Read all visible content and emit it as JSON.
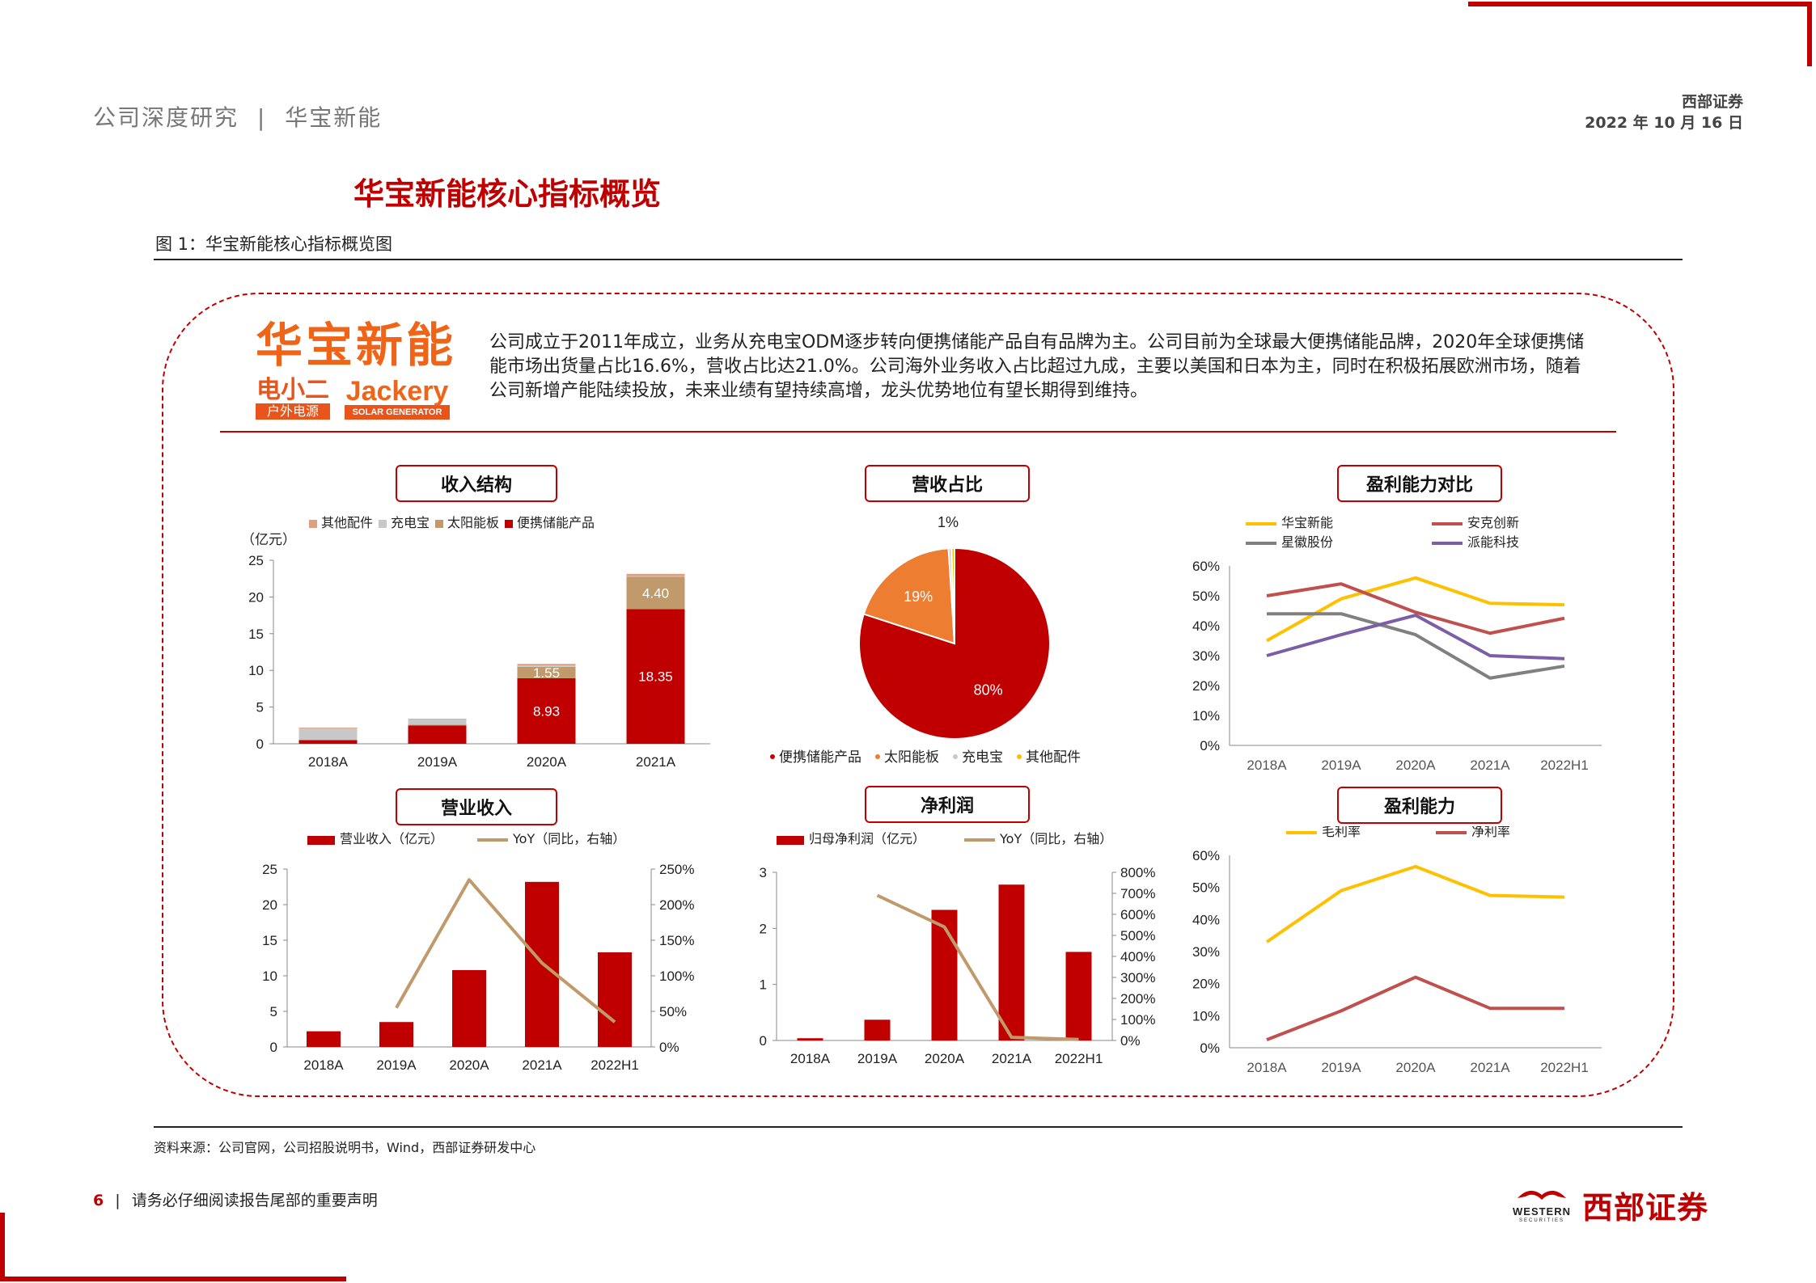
{
  "header": {
    "breadcrumb_left": "公司深度研究",
    "breadcrumb_sep": "|",
    "breadcrumb_right": "华宝新能",
    "org": "西部证券",
    "date": "2022 年 10 月 16 日"
  },
  "page_title": "华宝新能核心指标概览",
  "figure_caption": "图 1：华宝新能核心指标概览图",
  "company": {
    "logo_text": "华宝新能",
    "brand1_top": "电小二",
    "brand1_bottom": "户外电源",
    "brand2_top": "Jackery",
    "brand2_bottom": "SOLAR GENERATOR",
    "description": "公司成立于2011年成立，业务从充电宝ODM逐步转向便携储能产品自有品牌为主。公司目前为全球最大便携储能品牌，2020年全球便携储能市场出货量占比16.6%，营收占比达21.0%。公司海外业务收入占比超过九成，主要以美国和日本为主，同时在积极拓展欧洲市场，随着公司新增产能陆续投放，未来业绩有望持续高增，龙头优势地位有望长期得到维持。"
  },
  "source": "资料来源：公司官网，公司招股说明书，Wind，西部证券研发中心",
  "footer": {
    "page_number": "6",
    "disclaimer": "请务必仔细阅读报告尾部的重要声明",
    "logo_en_top": "WESTERN",
    "logo_en_bottom": "SECURITIES",
    "logo_cn": "西部证券"
  },
  "colors": {
    "accent": "#c00000",
    "orange": "#ed7d31",
    "tan": "#c09a6b",
    "gold": "#ffc000",
    "gray": "#808080",
    "purple": "#7b5ea7",
    "salmon": "#e0a080",
    "lightgray": "#c8c8c8"
  },
  "chart_data": [
    {
      "id": "revenue-structure",
      "type": "bar",
      "title": "收入结构",
      "ylabel": "（亿元）",
      "ylim": [
        0,
        25
      ],
      "yticks": [
        "0",
        "5",
        "10",
        "15",
        "20",
        "25"
      ],
      "categories": [
        "2018A",
        "2019A",
        "2020A",
        "2021A"
      ],
      "series": [
        {
          "name": "便携储能产品",
          "values": [
            0.5,
            2.5,
            8.93,
            18.35
          ],
          "labels": [
            "",
            "",
            "8.93",
            "18.35"
          ]
        },
        {
          "name": "太阳能板",
          "values": [
            0.0,
            0.1,
            1.55,
            4.4
          ],
          "labels": [
            "",
            "",
            "1.55",
            "4.40"
          ]
        },
        {
          "name": "充电宝",
          "values": [
            1.6,
            0.7,
            0.2,
            0.1
          ],
          "labels": [
            "",
            "",
            "",
            ""
          ]
        },
        {
          "name": "其他配件",
          "values": [
            0.1,
            0.1,
            0.2,
            0.3
          ],
          "labels": [
            "",
            "",
            "",
            ""
          ]
        }
      ],
      "legend_order": [
        "其他配件",
        "充电宝",
        "太阳能板",
        "便携储能产品"
      ]
    },
    {
      "id": "revenue-share",
      "type": "pie",
      "title": "营收占比",
      "slices": [
        {
          "name": "便携储能产品",
          "value": 80,
          "label": "80%"
        },
        {
          "name": "太阳能板",
          "value": 19,
          "label": "19%"
        },
        {
          "name": "充电宝",
          "value": 0.5,
          "label": ""
        },
        {
          "name": "其他配件",
          "value": 0.5,
          "label": ""
        }
      ],
      "outside_label": "1%"
    },
    {
      "id": "profitability-compare",
      "type": "line",
      "title": "盈利能力对比",
      "ylim": [
        0,
        60
      ],
      "yticks": [
        "0%",
        "10%",
        "20%",
        "30%",
        "40%",
        "50%",
        "60%"
      ],
      "categories": [
        "2018A",
        "2019A",
        "2020A",
        "2021A",
        "2022H1"
      ],
      "series": [
        {
          "name": "华宝新能",
          "values": [
            35,
            49,
            56,
            47.5,
            47
          ]
        },
        {
          "name": "安克创新",
          "values": [
            50,
            54,
            44.5,
            37.5,
            42.5
          ]
        },
        {
          "name": "星徽股份",
          "values": [
            44,
            44,
            37,
            22.5,
            26.5
          ]
        },
        {
          "name": "派能科技",
          "values": [
            30,
            37,
            43.5,
            30,
            29
          ]
        }
      ]
    },
    {
      "id": "operating-revenue",
      "type": "bar",
      "title": "营业收入",
      "ylim": [
        0,
        25
      ],
      "yticks": [
        "0",
        "5",
        "10",
        "15",
        "20",
        "25"
      ],
      "y2lim": [
        0,
        250
      ],
      "y2ticks": [
        "0%",
        "50%",
        "100%",
        "150%",
        "200%",
        "250%"
      ],
      "categories": [
        "2018A",
        "2019A",
        "2020A",
        "2021A",
        "2022H1"
      ],
      "series": [
        {
          "name": "营业收入（亿元）",
          "values": [
            2.2,
            3.5,
            10.8,
            23.2,
            13.3
          ]
        },
        {
          "name": "YoY（同比，右轴）",
          "axis": "right",
          "values": [
            null,
            55,
            235,
            118,
            35
          ]
        }
      ]
    },
    {
      "id": "net-profit",
      "type": "bar",
      "title": "净利润",
      "ylim": [
        0,
        3
      ],
      "yticks": [
        "0",
        "1",
        "2",
        "3"
      ],
      "y2lim": [
        0,
        800
      ],
      "y2ticks": [
        "0%",
        "100%",
        "200%",
        "300%",
        "400%",
        "500%",
        "600%",
        "700%",
        "800%"
      ],
      "categories": [
        "2018A",
        "2019A",
        "2020A",
        "2021A",
        "2022H1"
      ],
      "series": [
        {
          "name": "归母净利润（亿元）",
          "values": [
            0.04,
            0.37,
            2.33,
            2.78,
            1.58
          ]
        },
        {
          "name": "YoY（同比，右轴）",
          "axis": "right",
          "values": [
            null,
            690,
            540,
            15,
            5
          ]
        }
      ]
    },
    {
      "id": "profitability",
      "type": "line",
      "title": "盈利能力",
      "ylim": [
        0,
        60
      ],
      "yticks": [
        "0%",
        "10%",
        "20%",
        "30%",
        "40%",
        "50%",
        "60%"
      ],
      "categories": [
        "2018A",
        "2019A",
        "2020A",
        "2021A",
        "2022H1"
      ],
      "series": [
        {
          "name": "毛利率",
          "values": [
            33,
            49,
            56.5,
            47.5,
            47
          ]
        },
        {
          "name": "净利率",
          "values": [
            2.5,
            11.5,
            22,
            12.3,
            12.3
          ]
        }
      ]
    }
  ]
}
